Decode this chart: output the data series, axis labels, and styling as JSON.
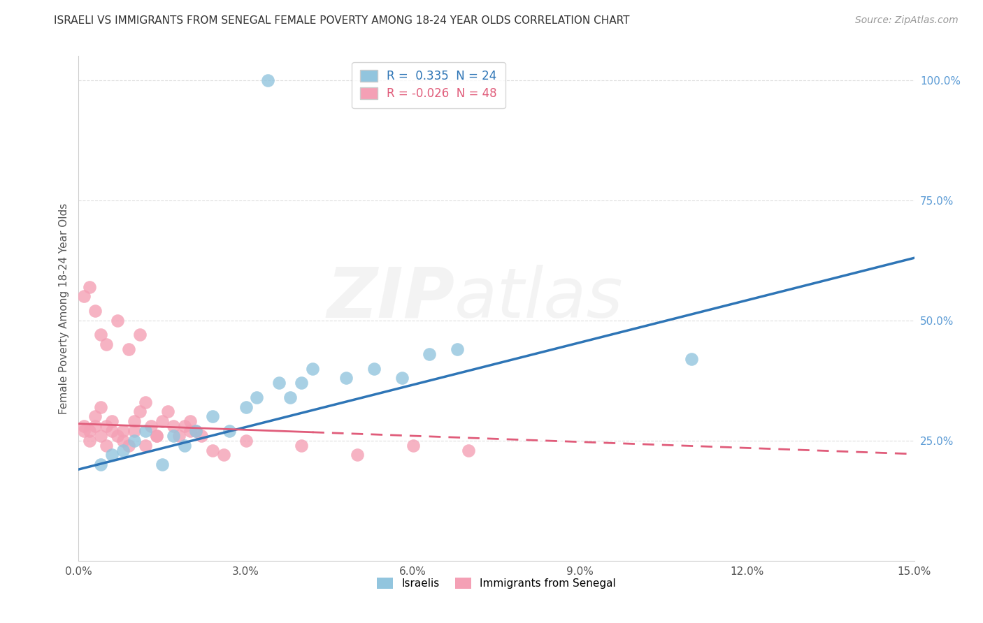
{
  "title": "ISRAELI VS IMMIGRANTS FROM SENEGAL FEMALE POVERTY AMONG 18-24 YEAR OLDS CORRELATION CHART",
  "source": "Source: ZipAtlas.com",
  "ylabel": "Female Poverty Among 18-24 Year Olds",
  "xlim": [
    0.0,
    0.15
  ],
  "ylim": [
    0.0,
    1.05
  ],
  "xticks": [
    0.0,
    0.03,
    0.06,
    0.09,
    0.12,
    0.15
  ],
  "yticks_right": [
    0.25,
    0.5,
    0.75,
    1.0
  ],
  "legend_R1": "0.335",
  "legend_N1": "24",
  "legend_R2": "-0.026",
  "legend_N2": "48",
  "series1_color": "#92C5DE",
  "series2_color": "#F4A0B5",
  "trendline1_color": "#2E75B6",
  "trendline2_color": "#E05C7A",
  "background_color": "#FFFFFF",
  "grid_color": "#DDDDDD",
  "watermark": "ZIPatlas",
  "israelis_x": [
    0.034,
    0.004,
    0.006,
    0.008,
    0.01,
    0.012,
    0.015,
    0.017,
    0.019,
    0.021,
    0.024,
    0.027,
    0.03,
    0.032,
    0.036,
    0.038,
    0.04,
    0.042,
    0.048,
    0.053,
    0.058,
    0.063,
    0.068,
    0.11
  ],
  "israelis_y": [
    1.0,
    0.2,
    0.22,
    0.23,
    0.25,
    0.27,
    0.2,
    0.26,
    0.24,
    0.27,
    0.3,
    0.27,
    0.32,
    0.34,
    0.37,
    0.34,
    0.37,
    0.4,
    0.38,
    0.4,
    0.38,
    0.43,
    0.44,
    0.42
  ],
  "senegal_x": [
    0.001,
    0.002,
    0.003,
    0.004,
    0.005,
    0.006,
    0.007,
    0.008,
    0.009,
    0.01,
    0.011,
    0.012,
    0.013,
    0.014,
    0.015,
    0.016,
    0.017,
    0.018,
    0.019,
    0.02,
    0.021,
    0.022,
    0.024,
    0.026,
    0.001,
    0.002,
    0.003,
    0.004,
    0.005,
    0.007,
    0.009,
    0.011,
    0.001,
    0.002,
    0.003,
    0.004,
    0.005,
    0.006,
    0.008,
    0.01,
    0.012,
    0.014,
    0.02,
    0.03,
    0.04,
    0.05,
    0.06,
    0.07
  ],
  "senegal_y": [
    0.28,
    0.27,
    0.3,
    0.32,
    0.28,
    0.29,
    0.26,
    0.27,
    0.24,
    0.29,
    0.31,
    0.33,
    0.28,
    0.26,
    0.29,
    0.31,
    0.28,
    0.26,
    0.28,
    0.29,
    0.27,
    0.26,
    0.23,
    0.22,
    0.55,
    0.57,
    0.52,
    0.47,
    0.45,
    0.5,
    0.44,
    0.47,
    0.27,
    0.25,
    0.28,
    0.26,
    0.24,
    0.27,
    0.25,
    0.27,
    0.24,
    0.26,
    0.27,
    0.25,
    0.24,
    0.22,
    0.24,
    0.23
  ],
  "trendline1_x0": 0.0,
  "trendline1_y0": 0.19,
  "trendline1_x1": 0.15,
  "trendline1_y1": 0.63,
  "trendline2_x0": 0.0,
  "trendline2_y0": 0.285,
  "trendline2_x1": 0.15,
  "trendline2_y1": 0.222
}
